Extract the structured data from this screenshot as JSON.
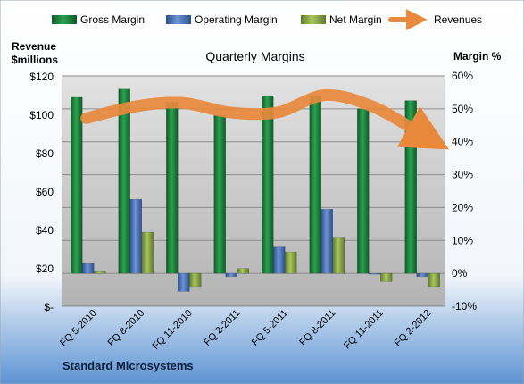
{
  "chart_data": {
    "type": "bar",
    "title": "Quarterly Margins",
    "left_axis_title": [
      "Revenue",
      "$millions"
    ],
    "right_axis_title": "Margin %",
    "footer": "Standard Microsystems",
    "categories": [
      "FQ 5-2010",
      "FQ 8-2010",
      "FQ 11-2010",
      "FQ 2-2011",
      "FQ 5-2011",
      "FQ 8-2011",
      "FQ 11-2011",
      "FQ 2-2012"
    ],
    "left_ticks": [
      "$-",
      "$20",
      "$40",
      "$60",
      "$80",
      "$100",
      "$120"
    ],
    "left_ylim": [
      0,
      120
    ],
    "right_ticks": [
      "-10%",
      "0%",
      "10%",
      "20%",
      "30%",
      "40%",
      "50%",
      "60%"
    ],
    "right_ylim": [
      -10,
      60
    ],
    "grid": true,
    "legend_position": "top",
    "series": [
      {
        "name": "Gross Margin",
        "type": "bar",
        "axis": "right",
        "color": "#1f7a3a",
        "values": [
          53.5,
          56,
          52,
          48,
          54,
          54,
          50,
          52.5
        ]
      },
      {
        "name": "Operating Margin",
        "type": "bar",
        "axis": "right",
        "color": "#4a6fb5",
        "values": [
          3,
          22.5,
          -5.5,
          -1,
          8,
          19.5,
          0,
          -1
        ]
      },
      {
        "name": "Net Margin",
        "type": "bar",
        "axis": "right",
        "color": "#8aa84a",
        "values": [
          0.5,
          12.5,
          -4,
          1.5,
          6.5,
          11,
          -2.5,
          -4
        ]
      },
      {
        "name": "Revenues",
        "type": "line",
        "axis": "left",
        "color": "#e8893c",
        "values": [
          98,
          104,
          106,
          101,
          101,
          110,
          104,
          90
        ]
      }
    ]
  }
}
